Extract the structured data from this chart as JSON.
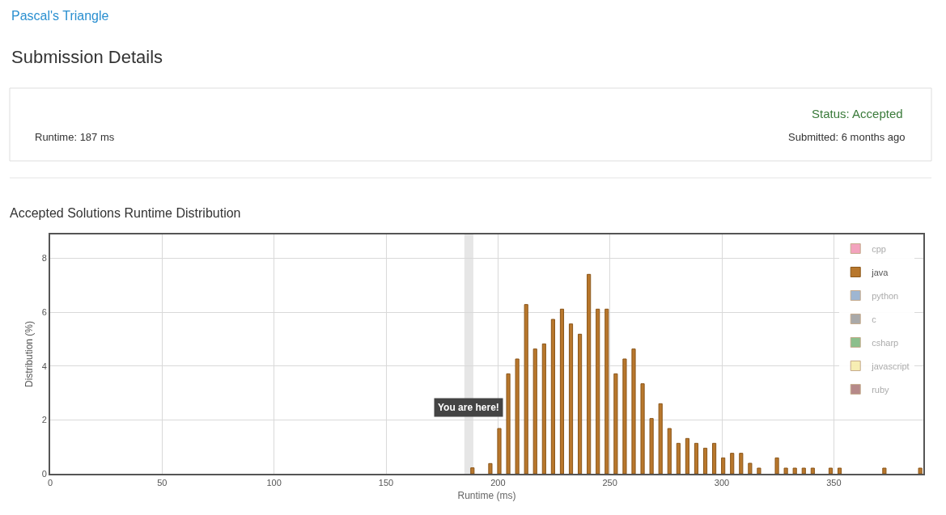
{
  "chart_data": {
    "type": "bar",
    "title": "Accepted Solutions Runtime Distribution",
    "xlabel": "Runtime (ms)",
    "ylabel": "Distribution (%)",
    "x": [
      188.6,
      196.6,
      200.6,
      204.6,
      208.6,
      212.6,
      216.6,
      220.6,
      224.6,
      228.6,
      232.6,
      236.6,
      240.6,
      244.6,
      248.6,
      252.6,
      256.6,
      260.6,
      264.6,
      268.6,
      272.6,
      276.6,
      280.6,
      284.6,
      288.6,
      292.6,
      296.6,
      300.6,
      304.6,
      308.6,
      312.6,
      316.6,
      324.6,
      328.6,
      332.6,
      336.6,
      340.6,
      348.6,
      352.6,
      372.6,
      388.6
    ],
    "series": [
      {
        "name": "cpp",
        "color": "#e8487f",
        "values": [
          null,
          null,
          null,
          null,
          null,
          null,
          null,
          null,
          null,
          null,
          null,
          null,
          null,
          null,
          null,
          null,
          null,
          null,
          null,
          null,
          null,
          null,
          null,
          null,
          null,
          null,
          null,
          null,
          null,
          null,
          null,
          null,
          null,
          null,
          null,
          null,
          null,
          null,
          null,
          null,
          null
        ]
      },
      {
        "name": "java",
        "color": "#b8772c",
        "values": [
          0.22,
          0.38,
          1.68,
          3.71,
          4.26,
          6.28,
          4.63,
          4.82,
          5.73,
          6.11,
          5.56,
          5.18,
          7.4,
          6.11,
          6.11,
          3.71,
          4.26,
          4.63,
          3.34,
          2.05,
          2.6,
          1.68,
          1.13,
          1.31,
          1.13,
          0.95,
          1.13,
          0.59,
          0.76,
          0.76,
          0.39,
          0.21,
          0.59,
          0.21,
          0.21,
          0.21,
          0.21,
          0.21,
          0.21,
          0.21,
          0.21
        ]
      },
      {
        "name": "python",
        "color": "#3f6fa6",
        "values": [
          null,
          null,
          null,
          null,
          null,
          null,
          null,
          null,
          null,
          null,
          null,
          null,
          null,
          null,
          null,
          null,
          null,
          null,
          null,
          null,
          null,
          null,
          null,
          null,
          null,
          null,
          null,
          null,
          null,
          null,
          null,
          null,
          null,
          null,
          null,
          null,
          null,
          null,
          null,
          null,
          null
        ]
      },
      {
        "name": "c",
        "color": "#555555",
        "values": [
          null,
          null,
          null,
          null,
          null,
          null,
          null,
          null,
          null,
          null,
          null,
          null,
          null,
          null,
          null,
          null,
          null,
          null,
          null,
          null,
          null,
          null,
          null,
          null,
          null,
          null,
          null,
          null,
          null,
          null,
          null,
          null,
          null,
          null,
          null,
          null,
          null,
          null,
          null,
          null,
          null
        ]
      },
      {
        "name": "csharp",
        "color": "#1a801a",
        "values": [
          null,
          null,
          null,
          null,
          null,
          null,
          null,
          null,
          null,
          null,
          null,
          null,
          null,
          null,
          null,
          null,
          null,
          null,
          null,
          null,
          null,
          null,
          null,
          null,
          null,
          null,
          null,
          null,
          null,
          null,
          null,
          null,
          null,
          null,
          null,
          null,
          null,
          null,
          null,
          null,
          null
        ]
      },
      {
        "name": "javascript",
        "color": "#f0de68",
        "values": [
          null,
          null,
          null,
          null,
          null,
          null,
          null,
          null,
          null,
          null,
          null,
          null,
          null,
          null,
          null,
          null,
          null,
          null,
          null,
          null,
          null,
          null,
          null,
          null,
          null,
          null,
          null,
          null,
          null,
          null,
          null,
          null,
          null,
          null,
          null,
          null,
          null,
          null,
          null,
          null,
          null
        ]
      },
      {
        "name": "ruby",
        "color": "#6e1515",
        "values": [
          null,
          null,
          null,
          null,
          null,
          null,
          null,
          null,
          null,
          null,
          null,
          null,
          null,
          null,
          null,
          null,
          null,
          null,
          null,
          null,
          null,
          null,
          null,
          null,
          null,
          null,
          null,
          null,
          null,
          null,
          null,
          null,
          null,
          null,
          null,
          null,
          null,
          null,
          null,
          null,
          null
        ]
      }
    ],
    "xlim": [
      0,
      390
    ],
    "xticks": [
      0,
      50,
      100,
      150,
      200,
      250,
      300,
      350
    ],
    "ylim": [
      0,
      8.88
    ],
    "yticks": [
      0,
      2,
      4,
      6,
      8
    ],
    "grid": true,
    "legend": "top right",
    "bands": [
      {
        "axis": "x",
        "from": 185,
        "to": 189,
        "color": "#e6e6e6",
        "label": "You are here!"
      }
    ],
    "annotations": [
      "Pascal's Triangle",
      "Submission Details",
      "Status: Accepted",
      "Runtime: 187 ms",
      "Submitted: 6 months ago"
    ]
  }
}
